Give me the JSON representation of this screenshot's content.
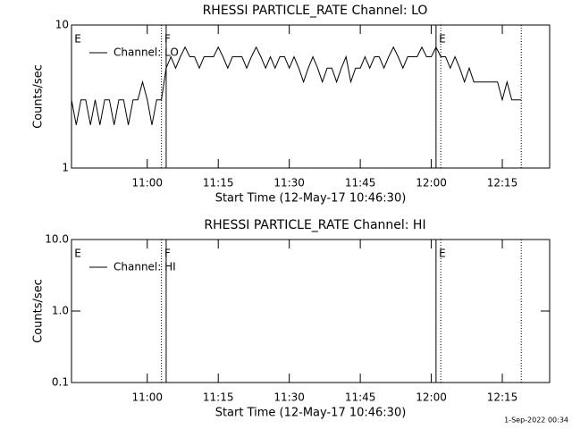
{
  "chart_data": [
    {
      "type": "line",
      "title": "RHESSI PARTICLE_RATE Channel: LO",
      "xlabel": "Start Time (12-May-17 10:46:30)",
      "ylabel": "Counts/sec",
      "log_y": true,
      "xlim": [
        "10:44",
        "12:25"
      ],
      "ylim": [
        1,
        10
      ],
      "yticks": [
        1,
        10
      ],
      "xticks": [
        "11:00",
        "11:15",
        "11:30",
        "11:45",
        "12:00",
        "12:15"
      ],
      "legend": "upper left",
      "vlines": [
        {
          "x": "11:03",
          "style": "dotted"
        },
        {
          "x": "11:04",
          "style": "solid"
        },
        {
          "x": "12:01",
          "style": "solid"
        },
        {
          "x": "12:02",
          "style": "dotted"
        },
        {
          "x": "12:19",
          "style": "dotted"
        }
      ],
      "annotations": [
        {
          "x": "10:45",
          "text": "E"
        },
        {
          "x": "11:04",
          "text": "F"
        },
        {
          "x": "12:02",
          "text": "E"
        }
      ],
      "series": [
        {
          "name": "Channel: LO",
          "color": "#000000",
          "x": [
            "10:44",
            "10:45",
            "10:46",
            "10:47",
            "10:48",
            "10:49",
            "10:50",
            "10:51",
            "10:52",
            "10:53",
            "10:54",
            "10:55",
            "10:56",
            "10:57",
            "10:58",
            "10:59",
            "11:00",
            "11:01",
            "11:02",
            "11:03",
            "11:04",
            "11:05",
            "11:06",
            "11:07",
            "11:08",
            "11:09",
            "11:10",
            "11:11",
            "11:12",
            "11:13",
            "11:14",
            "11:15",
            "11:16",
            "11:17",
            "11:18",
            "11:19",
            "11:20",
            "11:21",
            "11:22",
            "11:23",
            "11:24",
            "11:25",
            "11:26",
            "11:27",
            "11:28",
            "11:29",
            "11:30",
            "11:31",
            "11:32",
            "11:33",
            "11:34",
            "11:35",
            "11:36",
            "11:37",
            "11:38",
            "11:39",
            "11:40",
            "11:41",
            "11:42",
            "11:43",
            "11:44",
            "11:45",
            "11:46",
            "11:47",
            "11:48",
            "11:49",
            "11:50",
            "11:51",
            "11:52",
            "11:53",
            "11:54",
            "11:55",
            "11:56",
            "11:57",
            "11:58",
            "11:59",
            "12:00",
            "12:01",
            "12:02",
            "12:03",
            "12:04",
            "12:05",
            "12:06",
            "12:07",
            "12:08",
            "12:09",
            "12:10",
            "12:11",
            "12:12",
            "12:13",
            "12:14",
            "12:15",
            "12:16",
            "12:17",
            "12:18",
            "12:19"
          ],
          "values": [
            3,
            2,
            3,
            3,
            2,
            3,
            2,
            3,
            3,
            2,
            3,
            3,
            2,
            3,
            3,
            4,
            3,
            2,
            3,
            3,
            5,
            6,
            5,
            6,
            7,
            6,
            6,
            5,
            6,
            6,
            6,
            7,
            6,
            5,
            6,
            6,
            6,
            5,
            6,
            7,
            6,
            5,
            6,
            5,
            6,
            6,
            5,
            6,
            5,
            4,
            5,
            6,
            5,
            4,
            5,
            5,
            4,
            5,
            6,
            4,
            5,
            5,
            6,
            5,
            6,
            6,
            5,
            6,
            7,
            6,
            5,
            6,
            6,
            6,
            7,
            6,
            6,
            7,
            6,
            6,
            5,
            6,
            5,
            4,
            5,
            4,
            4,
            4,
            4,
            4,
            4,
            3,
            4,
            3,
            3,
            3
          ]
        }
      ]
    },
    {
      "type": "line",
      "title": "RHESSI PARTICLE_RATE Channel: HI",
      "xlabel": "Start Time (12-May-17 10:46:30)",
      "ylabel": "Counts/sec",
      "log_y": true,
      "xlim": [
        "10:44",
        "12:25"
      ],
      "ylim": [
        0.1,
        10
      ],
      "yticks": [
        0.1,
        {
          "value": 1,
          "label": "1.0"
        },
        {
          "value": 10,
          "label": "10.0"
        }
      ],
      "xticks": [
        "11:00",
        "11:15",
        "11:30",
        "11:45",
        "12:00",
        "12:15"
      ],
      "legend": "upper left",
      "vlines": [
        {
          "x": "11:03",
          "style": "dotted"
        },
        {
          "x": "11:04",
          "style": "solid"
        },
        {
          "x": "12:01",
          "style": "solid"
        },
        {
          "x": "12:02",
          "style": "dotted"
        },
        {
          "x": "12:19",
          "style": "dotted"
        }
      ],
      "annotations": [
        {
          "x": "10:45",
          "text": "E"
        },
        {
          "x": "11:04",
          "text": "F"
        },
        {
          "x": "12:02",
          "text": "E"
        }
      ],
      "series": [
        {
          "name": "Channel: HI",
          "color": "#000000",
          "x": [],
          "values": []
        }
      ]
    }
  ],
  "footer": "1-Sep-2022 00:34"
}
